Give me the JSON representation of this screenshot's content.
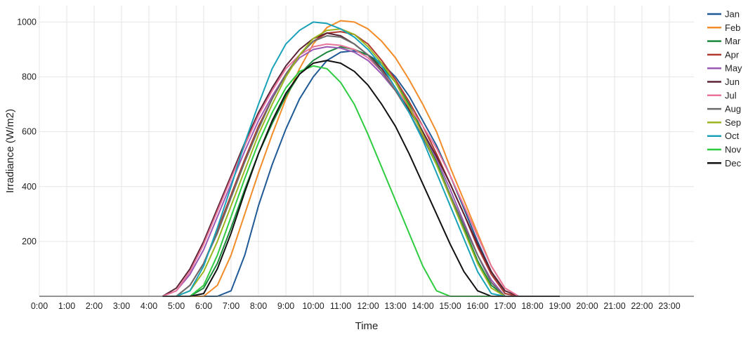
{
  "chart_data": {
    "type": "line",
    "xlabel": "Time",
    "ylabel": "Irradiance (W/m2)",
    "x_tick_labels": [
      "0:00",
      "1:00",
      "2:00",
      "3:00",
      "4:00",
      "5:00",
      "6:00",
      "7:00",
      "8:00",
      "9:00",
      "10:00",
      "11:00",
      "12:00",
      "13:00",
      "14:00",
      "15:00",
      "16:00",
      "17:00",
      "18:00",
      "19:00",
      "20:00",
      "21:00",
      "22:00",
      "23:00"
    ],
    "xlim": [
      0,
      24
    ],
    "y_ticks": [
      200,
      400,
      600,
      800,
      1000
    ],
    "ylim": [
      0,
      1060
    ],
    "grid": true,
    "legend_position": "right",
    "x": [
      4.5,
      5,
      5.5,
      6,
      6.5,
      7,
      7.5,
      8,
      8.5,
      9,
      9.5,
      10,
      10.5,
      11,
      11.5,
      12,
      12.5,
      13,
      13.5,
      14,
      14.5,
      15,
      15.5,
      16,
      16.5,
      17,
      17.5,
      18,
      18.5,
      19
    ],
    "series": [
      {
        "name": "Jan",
        "color": "#1f5a96",
        "values": [
          0,
          0,
          0,
          0,
          0,
          20,
          150,
          330,
          480,
          610,
          720,
          800,
          860,
          890,
          895,
          880,
          850,
          800,
          730,
          640,
          550,
          440,
          320,
          200,
          90,
          10,
          0,
          0,
          0,
          0
        ]
      },
      {
        "name": "Feb",
        "color": "#f28c28",
        "values": [
          0,
          0,
          0,
          0,
          40,
          150,
          300,
          450,
          590,
          720,
          830,
          920,
          980,
          1005,
          1000,
          975,
          930,
          870,
          790,
          700,
          600,
          470,
          350,
          230,
          110,
          30,
          0,
          0,
          0,
          0
        ]
      },
      {
        "name": "Mar",
        "color": "#1b8a3c",
        "values": [
          0,
          0,
          0,
          30,
          120,
          250,
          390,
          520,
          630,
          730,
          810,
          860,
          890,
          910,
          900,
          880,
          840,
          780,
          700,
          600,
          490,
          370,
          250,
          130,
          40,
          0,
          0,
          0,
          0,
          0
        ]
      },
      {
        "name": "Apr",
        "color": "#b03a2e",
        "values": [
          0,
          0,
          40,
          120,
          240,
          370,
          500,
          620,
          720,
          810,
          880,
          930,
          960,
          965,
          955,
          920,
          860,
          790,
          710,
          620,
          520,
          410,
          300,
          180,
          80,
          10,
          0,
          0,
          0,
          0
        ]
      },
      {
        "name": "May",
        "color": "#9b59b6",
        "values": [
          0,
          20,
          80,
          170,
          290,
          410,
          530,
          640,
          730,
          810,
          870,
          900,
          910,
          905,
          890,
          860,
          810,
          750,
          680,
          600,
          500,
          390,
          270,
          150,
          60,
          0,
          0,
          0,
          0,
          0
        ]
      },
      {
        "name": "Jun",
        "color": "#5b2333",
        "values": [
          0,
          30,
          100,
          200,
          320,
          440,
          560,
          670,
          760,
          840,
          900,
          940,
          960,
          950,
          920,
          880,
          830,
          760,
          680,
          600,
          510,
          410,
          300,
          190,
          90,
          20,
          0,
          0,
          0,
          0
        ]
      },
      {
        "name": "Jul",
        "color": "#e8739a",
        "values": [
          0,
          20,
          90,
          190,
          310,
          430,
          550,
          660,
          750,
          830,
          880,
          910,
          920,
          915,
          900,
          870,
          820,
          760,
          690,
          620,
          540,
          440,
          330,
          220,
          110,
          30,
          0,
          0,
          0,
          0
        ]
      },
      {
        "name": "Aug",
        "color": "#6b6b6b",
        "values": [
          0,
          0,
          40,
          120,
          230,
          360,
          490,
          610,
          720,
          810,
          880,
          930,
          950,
          945,
          920,
          880,
          820,
          750,
          670,
          580,
          480,
          370,
          260,
          150,
          50,
          0,
          0,
          0,
          0,
          0
        ]
      },
      {
        "name": "Sep",
        "color": "#9bb51f",
        "values": [
          0,
          0,
          20,
          90,
          200,
          330,
          460,
          590,
          700,
          800,
          880,
          940,
          970,
          975,
          955,
          910,
          850,
          780,
          690,
          590,
          480,
          360,
          240,
          120,
          30,
          0,
          0,
          0,
          0,
          0
        ]
      },
      {
        "name": "Oct",
        "color": "#17a2b8",
        "values": [
          0,
          0,
          20,
          110,
          250,
          400,
          560,
          700,
          830,
          920,
          970,
          1000,
          995,
          975,
          945,
          900,
          840,
          760,
          670,
          570,
          450,
          330,
          210,
          90,
          10,
          0,
          0,
          0,
          0,
          0
        ]
      },
      {
        "name": "Nov",
        "color": "#2ecc40",
        "values": [
          0,
          0,
          0,
          40,
          150,
          290,
          430,
          560,
          670,
          760,
          820,
          840,
          830,
          780,
          700,
          590,
          470,
          350,
          230,
          110,
          20,
          0,
          0,
          0,
          0,
          0,
          0,
          0,
          0,
          0
        ]
      },
      {
        "name": "Dec",
        "color": "#111111",
        "values": [
          0,
          0,
          0,
          10,
          100,
          230,
          380,
          520,
          640,
          740,
          810,
          850,
          860,
          850,
          820,
          770,
          700,
          620,
          520,
          410,
          300,
          190,
          90,
          20,
          0,
          0,
          0,
          0,
          0,
          0
        ]
      }
    ]
  }
}
